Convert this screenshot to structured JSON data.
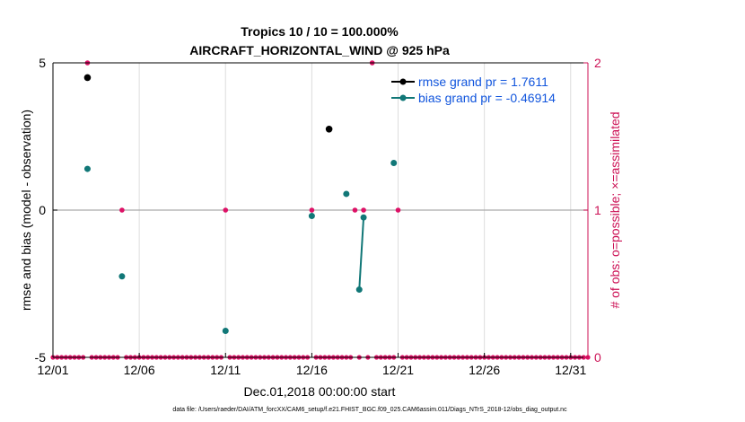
{
  "chart_data": {
    "type": "scatter",
    "title_line1": "Tropics 10 / 10 = 100.000%",
    "title_line2": "AIRCRAFT_HORIZONTAL_WIND @ 925 hPa",
    "xlabel": "Dec.01,2018 00:00:00 start",
    "ylabel_left": "rmse and bias (model - observation)",
    "ylabel_right": "# of obs: o=possible; ×=assimilated",
    "xlim": [
      0,
      31
    ],
    "ylim_left": [
      -5,
      5
    ],
    "ylim_right": [
      0,
      2
    ],
    "x_ticks": [
      0,
      5,
      10,
      15,
      20,
      25,
      30
    ],
    "x_tick_labels": [
      "12/01",
      "12/06",
      "12/11",
      "12/16",
      "12/21",
      "12/26",
      "12/31"
    ],
    "y_ticks_left": [
      -5,
      0,
      5
    ],
    "y_tick_labels_left": [
      "-5",
      "0",
      "5"
    ],
    "y_ticks_right": [
      0,
      1,
      2
    ],
    "y_tick_labels_right": [
      "0",
      "1",
      "2"
    ],
    "grid": true,
    "colors": {
      "rmse": "#000000",
      "bias": "#117777",
      "obs": "#dd1166",
      "legend_text": "#1155dd",
      "right_axis": "#cc1155",
      "grid": "#dddddd",
      "zero_line": "#aaaaaa"
    },
    "series": [
      {
        "name": "rmse",
        "legend": "rmse grand pr = 1.7611",
        "points": [
          [
            2,
            4.5
          ],
          [
            16,
            2.75
          ]
        ],
        "segments": []
      },
      {
        "name": "bias",
        "legend": "bias grand pr = -0.46914",
        "points": [
          [
            2,
            1.4
          ],
          [
            4,
            -2.25
          ],
          [
            10,
            -4.1
          ],
          [
            15,
            -0.2
          ],
          [
            17,
            0.55
          ],
          [
            17.75,
            -2.7
          ],
          [
            18,
            -0.25
          ],
          [
            19.75,
            1.6
          ]
        ],
        "segments": [
          [
            [
              17.75,
              -2.7
            ],
            [
              18,
              -0.25
            ]
          ]
        ]
      },
      {
        "name": "obs_possible",
        "axis": "right",
        "points": [
          [
            2,
            2
          ],
          [
            4,
            1
          ],
          [
            10,
            1
          ],
          [
            15,
            1
          ],
          [
            17.5,
            1
          ],
          [
            18,
            1
          ],
          [
            18.5,
            2
          ],
          [
            20,
            1
          ]
        ],
        "zero_days_step": 0.25
      }
    ],
    "legend_location": "top-right",
    "footnote": "data file: /Users/raeder/DAI/ATM_forcXX/CAM6_setup/f.e21.FHIST_BGC.f09_025.CAM6assim.011/Diags_NTrS_2018-12/obs_diag_output.nc"
  }
}
